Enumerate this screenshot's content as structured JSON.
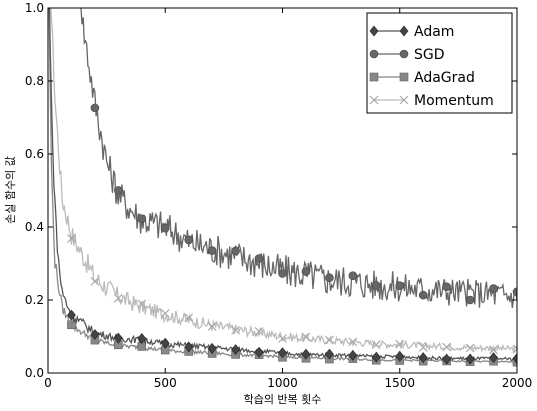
{
  "chart_data": {
    "type": "line",
    "xlabel": "학습의 반복 횟수",
    "ylabel": "손실 함수의 값",
    "xlim": [
      0,
      2000
    ],
    "ylim": [
      0.0,
      1.0
    ],
    "x_ticks": [
      "0",
      "500",
      "1000",
      "1500",
      "2000"
    ],
    "y_ticks": [
      "0.0",
      "0.2",
      "0.4",
      "0.6",
      "0.8",
      "1.0"
    ],
    "grid": false,
    "legend_position": "top-right",
    "series": [
      {
        "name": "Adam",
        "marker": "diamond",
        "color": "#555555",
        "marker_every": 100,
        "points": [
          [
            0,
            1.2
          ],
          [
            20,
            0.6
          ],
          [
            40,
            0.34
          ],
          [
            60,
            0.22
          ],
          [
            100,
            0.16
          ],
          [
            200,
            0.11
          ],
          [
            300,
            0.095
          ],
          [
            400,
            0.09
          ],
          [
            500,
            0.08
          ],
          [
            600,
            0.075
          ],
          [
            700,
            0.07
          ],
          [
            800,
            0.065
          ],
          [
            900,
            0.06
          ],
          [
            1000,
            0.055
          ],
          [
            1100,
            0.05
          ],
          [
            1200,
            0.05
          ],
          [
            1300,
            0.048
          ],
          [
            1400,
            0.045
          ],
          [
            1500,
            0.045
          ],
          [
            1600,
            0.042
          ],
          [
            1700,
            0.04
          ],
          [
            1800,
            0.04
          ],
          [
            1900,
            0.04
          ],
          [
            2000,
            0.038
          ]
        ]
      },
      {
        "name": "SGD",
        "marker": "circle",
        "color": "#666666",
        "marker_every": 100,
        "points": [
          [
            120,
            1.2
          ],
          [
            150,
            0.95
          ],
          [
            200,
            0.74
          ],
          [
            250,
            0.58
          ],
          [
            300,
            0.49
          ],
          [
            350,
            0.45
          ],
          [
            400,
            0.42
          ],
          [
            500,
            0.4
          ],
          [
            600,
            0.36
          ],
          [
            700,
            0.34
          ],
          [
            800,
            0.32
          ],
          [
            900,
            0.3
          ],
          [
            1000,
            0.28
          ],
          [
            1100,
            0.27
          ],
          [
            1200,
            0.255
          ],
          [
            1300,
            0.25
          ],
          [
            1400,
            0.24
          ],
          [
            1500,
            0.235
          ],
          [
            1600,
            0.23
          ],
          [
            1700,
            0.225
          ],
          [
            1800,
            0.22
          ],
          [
            1900,
            0.215
          ],
          [
            2000,
            0.21
          ]
        ]
      },
      {
        "name": "AdaGrad",
        "marker": "square",
        "color": "#888888",
        "marker_every": 100,
        "points": [
          [
            0,
            1.2
          ],
          [
            15,
            0.55
          ],
          [
            30,
            0.3
          ],
          [
            60,
            0.18
          ],
          [
            100,
            0.13
          ],
          [
            200,
            0.09
          ],
          [
            300,
            0.075
          ],
          [
            400,
            0.07
          ],
          [
            500,
            0.062
          ],
          [
            600,
            0.058
          ],
          [
            700,
            0.055
          ],
          [
            800,
            0.05
          ],
          [
            900,
            0.048
          ],
          [
            1000,
            0.045
          ],
          [
            1100,
            0.042
          ],
          [
            1200,
            0.04
          ],
          [
            1300,
            0.038
          ],
          [
            1400,
            0.036
          ],
          [
            1500,
            0.035
          ],
          [
            1600,
            0.034
          ],
          [
            1700,
            0.033
          ],
          [
            1800,
            0.032
          ],
          [
            1900,
            0.031
          ],
          [
            2000,
            0.03
          ]
        ]
      },
      {
        "name": "Momentum",
        "marker": "x",
        "color": "#bbbbbb",
        "marker_every": 100,
        "points": [
          [
            0,
            1.2
          ],
          [
            30,
            0.75
          ],
          [
            60,
            0.48
          ],
          [
            100,
            0.38
          ],
          [
            200,
            0.26
          ],
          [
            300,
            0.21
          ],
          [
            400,
            0.18
          ],
          [
            500,
            0.16
          ],
          [
            600,
            0.145
          ],
          [
            700,
            0.13
          ],
          [
            800,
            0.12
          ],
          [
            900,
            0.11
          ],
          [
            1000,
            0.1
          ],
          [
            1100,
            0.095
          ],
          [
            1200,
            0.09
          ],
          [
            1300,
            0.085
          ],
          [
            1400,
            0.08
          ],
          [
            1500,
            0.078
          ],
          [
            1600,
            0.075
          ],
          [
            1700,
            0.072
          ],
          [
            1800,
            0.07
          ],
          [
            1900,
            0.068
          ],
          [
            2000,
            0.066
          ]
        ]
      }
    ]
  }
}
